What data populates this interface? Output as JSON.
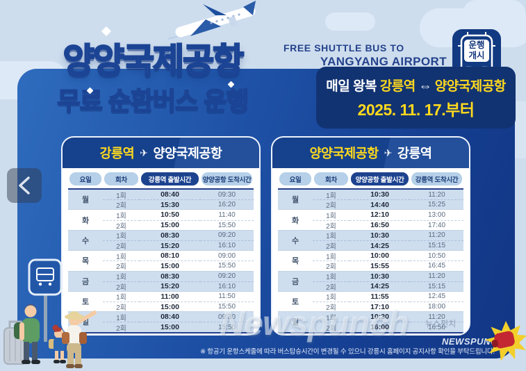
{
  "viewer": {
    "back_chevron": "‹"
  },
  "poster": {
    "title": "양양국제공항",
    "subtitle_highlight": "무료 순환버스",
    "subtitle_tail": " 운행",
    "eng_line1": "FREE SHUTTLE BUS TO",
    "eng_line2": "YANGYANG AIRPORT",
    "badge": {
      "line1": "운행",
      "line2": "개시"
    },
    "plane_glyph": "✈",
    "notice": {
      "prefix": "매일 왕복 ",
      "from": "강릉역",
      "arrow": " ⇔ ",
      "to": "양양국제공항",
      "date_line": "2025. 11. 17.부터"
    },
    "footnote": "※ 항공기 운항스케줄에 따라 버스탑승시간이 변경될 수 있으니 강릉시 홈페이지 공지사항 확인을 부탁드립니다.",
    "colors": {
      "panel_blue": "#1e51a6",
      "navy": "#16418c",
      "accent_yellow": "#ffd91e",
      "sky": "#cdddee",
      "alt_row": "#cedeef"
    }
  },
  "tables": [
    {
      "route_from": "강릉역",
      "route_to": "양양국제공항",
      "columns": [
        "요일",
        "회차",
        "강릉역 출발시간",
        "양양공항 도착시간"
      ],
      "days": [
        {
          "day": "월",
          "trips": [
            {
              "no": "1회",
              "dep": "08:40",
              "arr": "09:30"
            },
            {
              "no": "2회",
              "dep": "15:30",
              "arr": "16:20"
            }
          ]
        },
        {
          "day": "화",
          "trips": [
            {
              "no": "1회",
              "dep": "10:50",
              "arr": "11:40"
            },
            {
              "no": "2회",
              "dep": "15:00",
              "arr": "15:50"
            }
          ]
        },
        {
          "day": "수",
          "trips": [
            {
              "no": "1회",
              "dep": "08:30",
              "arr": "09:20"
            },
            {
              "no": "2회",
              "dep": "15:20",
              "arr": "16:10"
            }
          ]
        },
        {
          "day": "목",
          "trips": [
            {
              "no": "1회",
              "dep": "08:10",
              "arr": "09:00"
            },
            {
              "no": "2회",
              "dep": "15:00",
              "arr": "15:50"
            }
          ]
        },
        {
          "day": "금",
          "trips": [
            {
              "no": "1회",
              "dep": "08:30",
              "arr": "09:20"
            },
            {
              "no": "2회",
              "dep": "15:20",
              "arr": "16:10"
            }
          ]
        },
        {
          "day": "토",
          "trips": [
            {
              "no": "1회",
              "dep": "11:00",
              "arr": "11:50"
            },
            {
              "no": "2회",
              "dep": "15:00",
              "arr": "15:50"
            }
          ]
        },
        {
          "day": "일",
          "trips": [
            {
              "no": "1회",
              "dep": "08:40",
              "arr": "09:30"
            },
            {
              "no": "2회",
              "dep": "15:00",
              "arr": "15:50"
            }
          ]
        }
      ]
    },
    {
      "route_from": "양양국제공항",
      "route_to": "강릉역",
      "columns": [
        "요일",
        "회차",
        "양양공항 출발시간",
        "강릉역 도착시간"
      ],
      "days": [
        {
          "day": "월",
          "trips": [
            {
              "no": "1회",
              "dep": "10:30",
              "arr": "11:20"
            },
            {
              "no": "2회",
              "dep": "14:40",
              "arr": "15:25"
            }
          ]
        },
        {
          "day": "화",
          "trips": [
            {
              "no": "1회",
              "dep": "12:10",
              "arr": "13:00"
            },
            {
              "no": "2회",
              "dep": "16:50",
              "arr": "17:40"
            }
          ]
        },
        {
          "day": "수",
          "trips": [
            {
              "no": "1회",
              "dep": "10:30",
              "arr": "11:20"
            },
            {
              "no": "2회",
              "dep": "14:25",
              "arr": "15:15"
            }
          ]
        },
        {
          "day": "목",
          "trips": [
            {
              "no": "1회",
              "dep": "10:00",
              "arr": "10:50"
            },
            {
              "no": "2회",
              "dep": "15:55",
              "arr": "16:45"
            }
          ]
        },
        {
          "day": "금",
          "trips": [
            {
              "no": "1회",
              "dep": "10:30",
              "arr": "11:20"
            },
            {
              "no": "2회",
              "dep": "14:25",
              "arr": "15:15"
            }
          ]
        },
        {
          "day": "토",
          "trips": [
            {
              "no": "1회",
              "dep": "11:55",
              "arr": "12:45"
            },
            {
              "no": "2회",
              "dep": "17:10",
              "arr": "18:00"
            }
          ]
        },
        {
          "day": "일",
          "trips": [
            {
              "no": "1회",
              "dep": "10:30",
              "arr": "11:20"
            },
            {
              "no": "2회",
              "dep": "16:00",
              "arr": "16:50"
            }
          ]
        }
      ]
    }
  ],
  "watermark": {
    "big": "Newspunch",
    "korean": "뉴스펀치",
    "small": "NEWSPUNCH"
  }
}
